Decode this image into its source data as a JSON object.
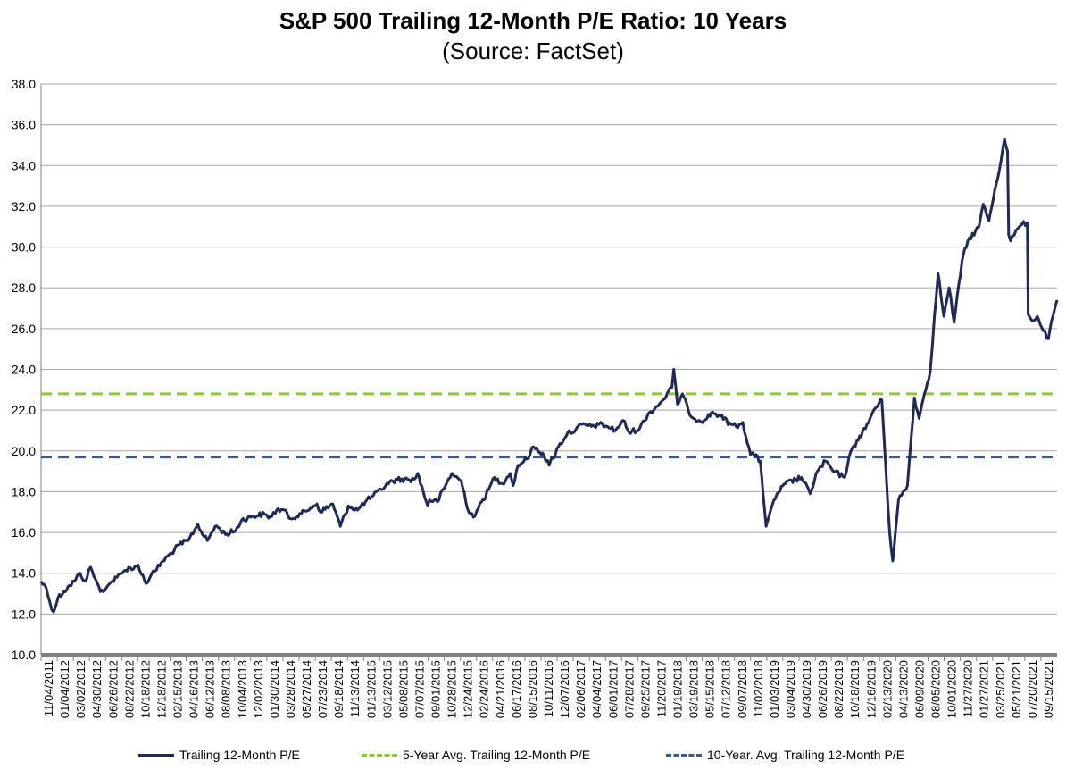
{
  "colors": {
    "series": "#1f2a56",
    "avg5": "#8cc63f",
    "avg10": "#3a5a8c",
    "grid": "#a6a6a6",
    "axis": "#808080"
  },
  "chart_data": {
    "type": "line",
    "title": "S&P 500 Trailing 12-Month P/E Ratio: 10 Years",
    "subtitle": "(Source: FactSet)",
    "ylim": [
      10,
      38
    ],
    "yticks": [
      "10.0",
      "12.0",
      "14.0",
      "16.0",
      "18.0",
      "20.0",
      "22.0",
      "24.0",
      "26.0",
      "28.0",
      "30.0",
      "32.0",
      "34.0",
      "36.0",
      "38.0"
    ],
    "xlim": [
      "2011-11-04",
      "2021-11-04"
    ],
    "xtick_labels": [
      "11/04/2011",
      "01/04/2012",
      "03/02/2012",
      "04/30/2012",
      "06/26/2012",
      "08/22/2012",
      "10/18/2012",
      "12/18/2012",
      "02/15/2013",
      "04/16/2013",
      "06/12/2013",
      "08/08/2013",
      "10/04/2013",
      "12/02/2013",
      "01/30/2014",
      "03/28/2014",
      "05/27/2014",
      "07/23/2014",
      "09/18/2014",
      "11/13/2014",
      "01/13/2015",
      "03/12/2015",
      "05/08/2015",
      "07/07/2015",
      "09/01/2015",
      "10/28/2015",
      "12/24/2015",
      "02/24/2016",
      "04/21/2016",
      "06/17/2016",
      "08/15/2016",
      "10/11/2016",
      "12/07/2016",
      "02/06/2017",
      "04/04/2017",
      "06/01/2017",
      "07/28/2017",
      "09/25/2017",
      "11/20/2017",
      "01/19/2018",
      "03/19/2018",
      "05/15/2018",
      "07/12/2018",
      "09/07/2018",
      "11/02/2018",
      "01/03/2019",
      "03/04/2019",
      "04/30/2019",
      "06/26/2019",
      "08/22/2019",
      "10/18/2019",
      "12/16/2019",
      "02/13/2020",
      "04/13/2020",
      "06/09/2020",
      "08/05/2020",
      "10/01/2020",
      "11/27/2020",
      "01/27/2021",
      "03/25/2021",
      "05/21/2021",
      "07/20/2021",
      "09/15/2021"
    ],
    "grid": true,
    "legend_position": "bottom",
    "series": [
      {
        "name": "Trailing 12-Month P/E",
        "style": "solid",
        "points": [
          [
            "2011-11-04",
            13.6
          ],
          [
            "2011-11-22",
            13.3
          ],
          [
            "2011-12-05",
            12.6
          ],
          [
            "2011-12-19",
            12.1
          ],
          [
            "2012-01-04",
            12.8
          ],
          [
            "2012-01-25",
            13.1
          ],
          [
            "2012-02-15",
            13.4
          ],
          [
            "2012-03-02",
            13.6
          ],
          [
            "2012-03-23",
            14.0
          ],
          [
            "2012-04-10",
            13.6
          ],
          [
            "2012-04-30",
            14.3
          ],
          [
            "2012-05-18",
            13.7
          ],
          [
            "2012-06-04",
            13.1
          ],
          [
            "2012-06-26",
            13.3
          ],
          [
            "2012-07-16",
            13.6
          ],
          [
            "2012-08-03",
            13.8
          ],
          [
            "2012-08-22",
            14.0
          ],
          [
            "2012-09-14",
            14.3
          ],
          [
            "2012-10-01",
            14.2
          ],
          [
            "2012-10-18",
            14.4
          ],
          [
            "2012-11-15",
            13.5
          ],
          [
            "2012-12-03",
            13.9
          ],
          [
            "2012-12-18",
            14.1
          ],
          [
            "2013-01-15",
            14.6
          ],
          [
            "2013-02-15",
            15.0
          ],
          [
            "2013-03-15",
            15.4
          ],
          [
            "2013-04-16",
            15.6
          ],
          [
            "2013-05-21",
            16.4
          ],
          [
            "2013-06-12",
            15.8
          ],
          [
            "2013-06-24",
            15.6
          ],
          [
            "2013-07-22",
            16.3
          ],
          [
            "2013-08-08",
            16.2
          ],
          [
            "2013-08-28",
            15.9
          ],
          [
            "2013-10-04",
            16.1
          ],
          [
            "2013-10-25",
            16.6
          ],
          [
            "2013-12-02",
            16.8
          ],
          [
            "2014-01-15",
            16.9
          ],
          [
            "2014-01-30",
            16.7
          ],
          [
            "2014-02-28",
            17.1
          ],
          [
            "2014-03-28",
            17.1
          ],
          [
            "2014-04-14",
            16.7
          ],
          [
            "2014-05-27",
            16.9
          ],
          [
            "2014-06-30",
            17.2
          ],
          [
            "2014-07-23",
            17.4
          ],
          [
            "2014-08-05",
            17.0
          ],
          [
            "2014-09-18",
            17.4
          ],
          [
            "2014-10-15",
            16.3
          ],
          [
            "2014-11-13",
            17.3
          ],
          [
            "2014-12-16",
            17.1
          ],
          [
            "2015-01-13",
            17.5
          ],
          [
            "2015-02-10",
            17.8
          ],
          [
            "2015-03-12",
            18.1
          ],
          [
            "2015-03-31",
            18.4
          ],
          [
            "2015-05-08",
            18.6
          ],
          [
            "2015-06-15",
            18.6
          ],
          [
            "2015-07-07",
            18.6
          ],
          [
            "2015-07-20",
            18.9
          ],
          [
            "2015-08-25",
            17.3
          ],
          [
            "2015-09-01",
            17.6
          ],
          [
            "2015-09-29",
            17.5
          ],
          [
            "2015-10-28",
            18.3
          ],
          [
            "2015-11-20",
            18.9
          ],
          [
            "2015-12-24",
            18.5
          ],
          [
            "2016-01-20",
            17.0
          ],
          [
            "2016-02-11",
            16.8
          ],
          [
            "2016-02-24",
            17.2
          ],
          [
            "2016-03-31",
            18.1
          ],
          [
            "2016-04-21",
            18.7
          ],
          [
            "2016-05-19",
            18.4
          ],
          [
            "2016-06-17",
            18.9
          ],
          [
            "2016-06-27",
            18.3
          ],
          [
            "2016-07-15",
            19.3
          ],
          [
            "2016-08-15",
            19.6
          ],
          [
            "2016-09-09",
            20.2
          ],
          [
            "2016-10-11",
            19.9
          ],
          [
            "2016-11-04",
            19.3
          ],
          [
            "2016-12-07",
            20.2
          ],
          [
            "2017-01-10",
            20.9
          ],
          [
            "2017-02-06",
            21.0
          ],
          [
            "2017-03-01",
            21.3
          ],
          [
            "2017-04-04",
            21.2
          ],
          [
            "2017-05-02",
            21.3
          ],
          [
            "2017-06-01",
            21.2
          ],
          [
            "2017-06-30",
            21.0
          ],
          [
            "2017-07-28",
            21.5
          ],
          [
            "2017-08-18",
            20.9
          ],
          [
            "2017-09-25",
            21.1
          ],
          [
            "2017-10-25",
            21.8
          ],
          [
            "2017-11-20",
            22.1
          ],
          [
            "2017-12-18",
            22.5
          ],
          [
            "2018-01-19",
            23.1
          ],
          [
            "2018-01-26",
            24.0
          ],
          [
            "2018-02-08",
            22.3
          ],
          [
            "2018-02-26",
            22.8
          ],
          [
            "2018-03-19",
            22.0
          ],
          [
            "2018-04-06",
            21.6
          ],
          [
            "2018-05-15",
            21.5
          ],
          [
            "2018-06-15",
            21.9
          ],
          [
            "2018-07-12",
            21.7
          ],
          [
            "2018-08-20",
            21.3
          ],
          [
            "2018-09-07",
            21.2
          ],
          [
            "2018-10-01",
            21.4
          ],
          [
            "2018-10-29",
            19.8
          ],
          [
            "2018-11-02",
            19.9
          ],
          [
            "2018-12-03",
            19.5
          ],
          [
            "2018-12-24",
            16.3
          ],
          [
            "2019-01-03",
            16.8
          ],
          [
            "2019-02-01",
            17.9
          ],
          [
            "2019-03-04",
            18.4
          ],
          [
            "2019-04-30",
            18.7
          ],
          [
            "2019-05-31",
            17.9
          ],
          [
            "2019-06-26",
            19.0
          ],
          [
            "2019-07-26",
            19.5
          ],
          [
            "2019-08-22",
            19.0
          ],
          [
            "2019-10-02",
            18.7
          ],
          [
            "2019-10-18",
            19.7
          ],
          [
            "2019-11-15",
            20.5
          ],
          [
            "2019-12-16",
            21.1
          ],
          [
            "2020-01-15",
            22.0
          ],
          [
            "2020-02-13",
            22.5
          ],
          [
            "2020-02-28",
            19.0
          ],
          [
            "2020-03-12",
            16.0
          ],
          [
            "2020-03-23",
            14.6
          ],
          [
            "2020-04-13",
            17.6
          ],
          [
            "2020-05-15",
            18.3
          ],
          [
            "2020-06-09",
            22.6
          ],
          [
            "2020-06-26",
            21.6
          ],
          [
            "2020-07-15",
            22.8
          ],
          [
            "2020-08-05",
            23.9
          ],
          [
            "2020-08-20",
            26.6
          ],
          [
            "2020-09-02",
            28.7
          ],
          [
            "2020-09-23",
            26.6
          ],
          [
            "2020-10-12",
            28.0
          ],
          [
            "2020-10-30",
            26.3
          ],
          [
            "2020-11-27",
            29.3
          ],
          [
            "2020-12-18",
            30.3
          ],
          [
            "2021-01-27",
            31.0
          ],
          [
            "2021-02-12",
            32.1
          ],
          [
            "2021-03-04",
            31.3
          ],
          [
            "2021-03-25",
            32.8
          ],
          [
            "2021-04-16",
            34.2
          ],
          [
            "2021-04-29",
            35.3
          ],
          [
            "2021-05-10",
            34.7
          ],
          [
            "2021-05-14",
            30.6
          ],
          [
            "2021-05-21",
            30.3
          ],
          [
            "2021-06-15",
            30.9
          ],
          [
            "2021-06-30",
            31.1
          ],
          [
            "2021-07-20",
            31.2
          ],
          [
            "2021-07-23",
            26.7
          ],
          [
            "2021-08-05",
            26.4
          ],
          [
            "2021-08-25",
            26.6
          ],
          [
            "2021-09-15",
            25.9
          ],
          [
            "2021-10-04",
            25.5
          ],
          [
            "2021-10-20",
            26.6
          ],
          [
            "2021-11-04",
            27.4
          ]
        ]
      },
      {
        "name": "5-Year Avg. Trailing 12-Month P/E",
        "style": "dashed",
        "constant": 22.8
      },
      {
        "name": "10-Year. Avg. Trailing 12-Month P/E",
        "style": "dashed",
        "constant": 19.7
      }
    ]
  }
}
